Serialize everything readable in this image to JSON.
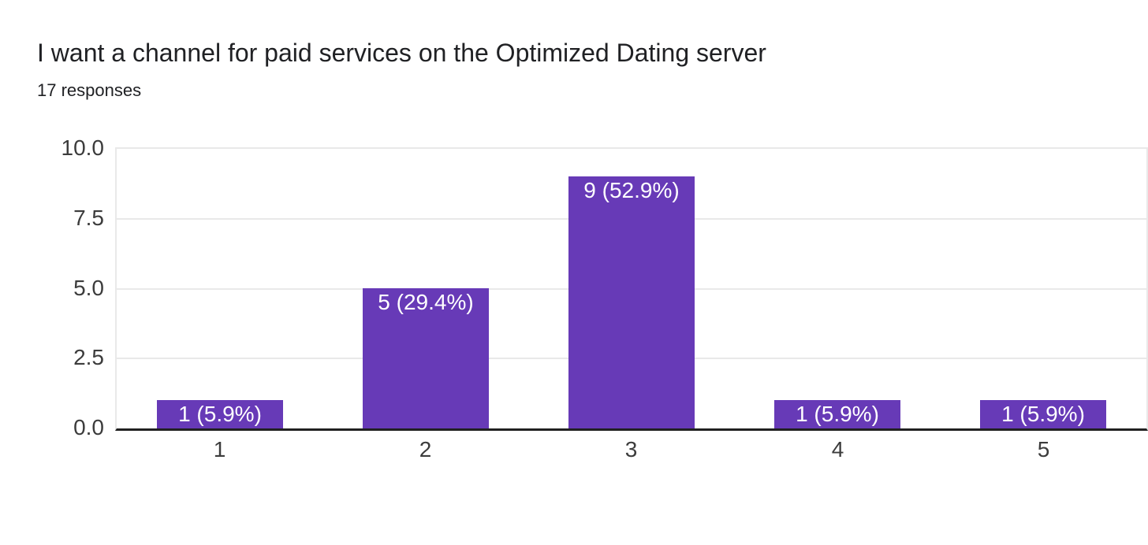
{
  "chart_data": {
    "type": "bar",
    "title": "I want a channel for paid services on the Optimized Dating server",
    "subtitle": "17 responses",
    "total_responses": 17,
    "categories": [
      "1",
      "2",
      "3",
      "4",
      "5"
    ],
    "values": [
      1,
      5,
      9,
      1,
      1
    ],
    "bar_labels": [
      "1 (5.9%)",
      "5 (29.4%)",
      "9 (52.9%)",
      "1 (5.9%)",
      "1 (5.9%)"
    ],
    "ylim": [
      0,
      10
    ],
    "yticks": [
      0,
      2.5,
      5,
      7.5,
      10
    ],
    "ytick_labels": [
      "0.0",
      "2.5",
      "5.0",
      "7.5",
      "10.0"
    ],
    "xlabel": "",
    "ylabel": "",
    "legend": "none",
    "grid": true,
    "colors": {
      "bar": "#673ab7",
      "bar_label_text": "#ffffff",
      "gridline": "#e9e9e9",
      "axis_line": "#212121",
      "tick_text": "#3c3c3c",
      "title_text": "#202124",
      "background": "#ffffff"
    }
  }
}
